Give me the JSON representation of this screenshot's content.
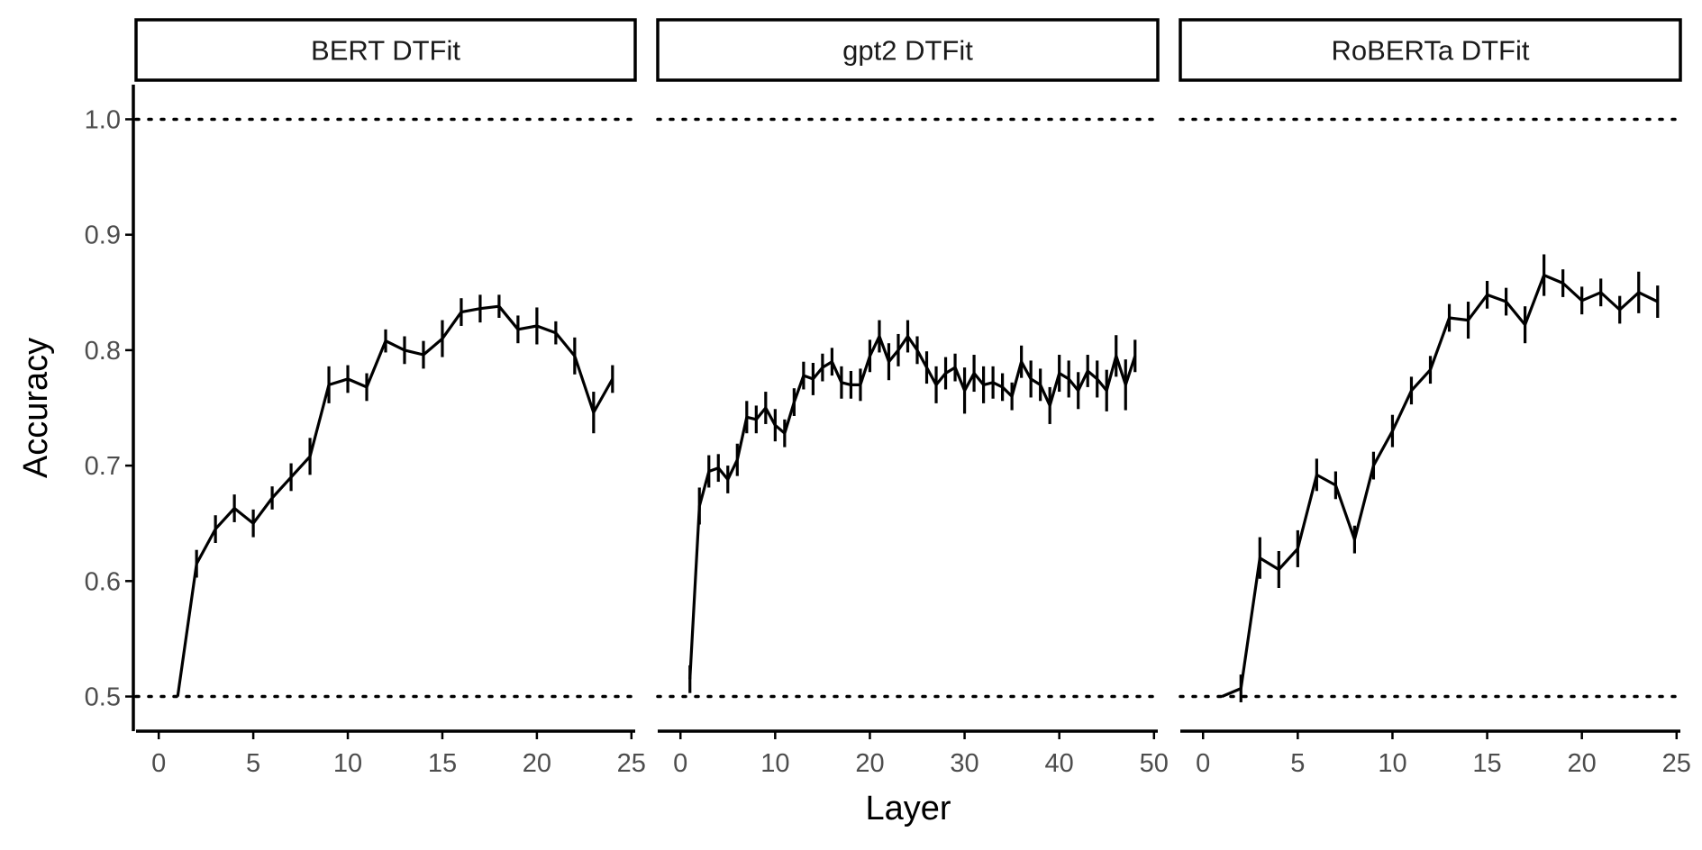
{
  "chart_data": {
    "type": "line",
    "ylabel": "Accuracy",
    "xlabel": "Layer",
    "ylim": [
      0.47,
      1.03
    ],
    "y_ticks": [
      0.5,
      0.6,
      0.7,
      0.8,
      0.9,
      1.0
    ],
    "y_tick_labels": [
      "0.5",
      "0.6",
      "0.7",
      "0.8",
      "0.9",
      "1.0"
    ],
    "reference_lines": [
      0.5,
      1.0
    ],
    "grid": false,
    "panels": [
      {
        "title": "BERT DTFit",
        "xlim": [
          -1.2,
          25.2
        ],
        "x_ticks": [
          0,
          5,
          10,
          15,
          20,
          25
        ],
        "x_tick_labels": [
          "0",
          "5",
          "10",
          "15",
          "20",
          "25"
        ],
        "x": [
          1,
          2,
          3,
          4,
          5,
          6,
          7,
          8,
          9,
          10,
          11,
          12,
          13,
          14,
          15,
          16,
          17,
          18,
          19,
          20,
          21,
          22,
          23,
          24
        ],
        "y": [
          0.5,
          0.615,
          0.645,
          0.663,
          0.65,
          0.672,
          0.69,
          0.708,
          0.77,
          0.775,
          0.768,
          0.808,
          0.8,
          0.796,
          0.81,
          0.833,
          0.836,
          0.838,
          0.818,
          0.821,
          0.815,
          0.795,
          0.746,
          0.775
        ],
        "err": [
          0,
          0.012,
          0.012,
          0.012,
          0.012,
          0.01,
          0.012,
          0.016,
          0.016,
          0.012,
          0.012,
          0.01,
          0.012,
          0.012,
          0.016,
          0.012,
          0.012,
          0.01,
          0.012,
          0.016,
          0.01,
          0.016,
          0.018,
          0.012
        ]
      },
      {
        "title": "gpt2 DTFit",
        "xlim": [
          -2.4,
          50.4
        ],
        "x_ticks": [
          0,
          10,
          20,
          30,
          40,
          50
        ],
        "x_tick_labels": [
          "0",
          "10",
          "20",
          "30",
          "40",
          "50"
        ],
        "x": [
          1,
          2,
          3,
          4,
          5,
          6,
          7,
          8,
          9,
          10,
          11,
          12,
          13,
          14,
          15,
          16,
          17,
          18,
          19,
          20,
          21,
          22,
          23,
          24,
          25,
          26,
          27,
          28,
          29,
          30,
          31,
          32,
          33,
          34,
          35,
          36,
          37,
          38,
          39,
          40,
          41,
          42,
          43,
          44,
          45,
          46,
          47,
          48
        ],
        "y": [
          0.515,
          0.665,
          0.695,
          0.698,
          0.688,
          0.705,
          0.742,
          0.74,
          0.75,
          0.735,
          0.728,
          0.755,
          0.778,
          0.775,
          0.785,
          0.79,
          0.772,
          0.77,
          0.77,
          0.795,
          0.812,
          0.79,
          0.8,
          0.812,
          0.8,
          0.785,
          0.77,
          0.78,
          0.785,
          0.765,
          0.78,
          0.77,
          0.772,
          0.768,
          0.76,
          0.79,
          0.775,
          0.77,
          0.752,
          0.78,
          0.775,
          0.765,
          0.782,
          0.775,
          0.765,
          0.795,
          0.77,
          0.795
        ],
        "err": [
          0.012,
          0.016,
          0.014,
          0.012,
          0.012,
          0.014,
          0.014,
          0.012,
          0.014,
          0.014,
          0.012,
          0.012,
          0.012,
          0.014,
          0.012,
          0.012,
          0.014,
          0.012,
          0.014,
          0.014,
          0.014,
          0.016,
          0.014,
          0.014,
          0.012,
          0.014,
          0.016,
          0.014,
          0.012,
          0.02,
          0.016,
          0.016,
          0.014,
          0.012,
          0.012,
          0.014,
          0.016,
          0.014,
          0.016,
          0.016,
          0.016,
          0.016,
          0.014,
          0.016,
          0.018,
          0.018,
          0.022,
          0.014
        ]
      },
      {
        "title": "RoBERTa DTFit",
        "xlim": [
          -1.2,
          25.2
        ],
        "x_ticks": [
          0,
          5,
          10,
          15,
          20,
          25
        ],
        "x_tick_labels": [
          "0",
          "5",
          "10",
          "15",
          "20",
          "25"
        ],
        "x": [
          1,
          2,
          3,
          4,
          5,
          6,
          7,
          8,
          9,
          10,
          11,
          12,
          13,
          14,
          15,
          16,
          17,
          18,
          19,
          20,
          21,
          22,
          23,
          24
        ],
        "y": [
          0.5,
          0.507,
          0.62,
          0.61,
          0.628,
          0.692,
          0.683,
          0.636,
          0.7,
          0.73,
          0.765,
          0.783,
          0.828,
          0.826,
          0.848,
          0.842,
          0.822,
          0.865,
          0.858,
          0.843,
          0.85,
          0.835,
          0.85,
          0.842
        ],
        "err": [
          0,
          0.012,
          0.018,
          0.016,
          0.016,
          0.014,
          0.012,
          0.012,
          0.012,
          0.014,
          0.012,
          0.012,
          0.012,
          0.016,
          0.012,
          0.012,
          0.016,
          0.018,
          0.012,
          0.012,
          0.012,
          0.012,
          0.018,
          0.014
        ]
      }
    ]
  }
}
